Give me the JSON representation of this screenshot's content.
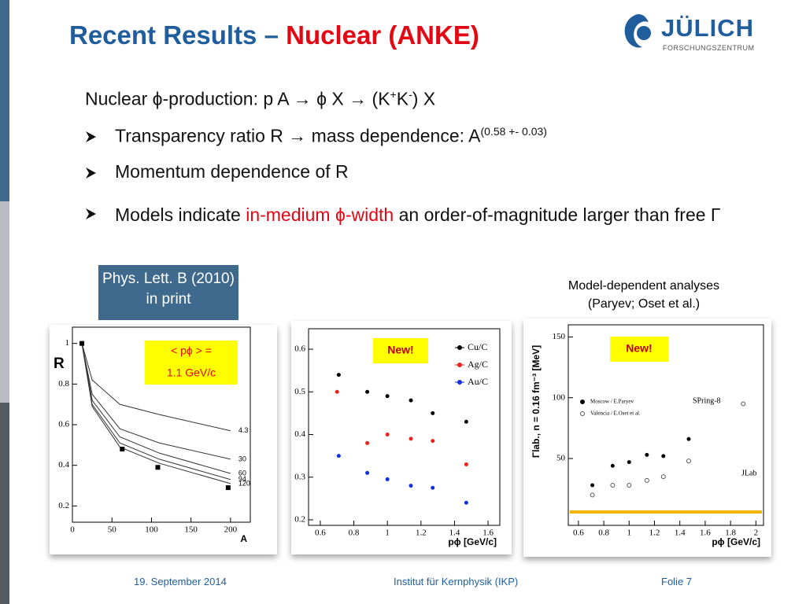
{
  "header": {
    "title_main": "Recent Results –",
    "title_highlight": "Nuclear (ANKE)",
    "logo_name": "JÜLICH",
    "logo_sub": "FORSCHUNGSZENTRUM"
  },
  "content": {
    "heading": {
      "text": "Nuclear ϕ-production: p A → ϕ X → (K",
      "sup1": "+",
      "mid": "K",
      "sup2": "-",
      "end": ") X"
    },
    "bullets": [
      {
        "text": "Transparency ratio R  → mass dependence: A",
        "sup": "(0.58 +- 0.03)"
      },
      {
        "text": "Momentum dependence of R"
      },
      {
        "text": "Models indicate ",
        "highlight": "in-medium ϕ-width",
        "end": " an order-of-magnitude larger than free Γ"
      }
    ],
    "reference": "Phys. Lett. B (2010) in print",
    "models_note": "Model-dependent analyses (Paryev; Oset et al.)"
  },
  "plots": [
    {
      "xlim": [
        0,
        225
      ],
      "ylim": [
        0.12,
        1.08
      ],
      "xticks": [
        0,
        50,
        100,
        150,
        200
      ],
      "yticks": [
        0.2,
        0.4,
        0.6,
        0.8,
        1
      ],
      "ylabel": "R",
      "xlabel": "A",
      "badge": [
        "< pϕ > =",
        "1.1 GeV/c"
      ],
      "series": [
        {
          "name": "4.3",
          "line": true,
          "color": "#333333",
          "x": [
            12,
            25,
            60,
            110,
            200
          ],
          "y": [
            1,
            0.82,
            0.7,
            0.65,
            0.57
          ]
        },
        {
          "name": "30",
          "line": true,
          "color": "#333333",
          "x": [
            12,
            25,
            60,
            110,
            200
          ],
          "y": [
            1,
            0.75,
            0.58,
            0.51,
            0.43
          ]
        },
        {
          "name": "60",
          "line": true,
          "color": "#333333",
          "x": [
            12,
            25,
            60,
            110,
            200
          ],
          "y": [
            1,
            0.72,
            0.54,
            0.46,
            0.36
          ]
        },
        {
          "name": "94",
          "line": true,
          "color": "#333333",
          "x": [
            12,
            25,
            60,
            110,
            200
          ],
          "y": [
            1,
            0.7,
            0.51,
            0.43,
            0.33
          ]
        },
        {
          "name": "120",
          "line": true,
          "color": "#333333",
          "x": [
            12,
            25,
            60,
            110,
            200
          ],
          "y": [
            1,
            0.69,
            0.49,
            0.41,
            0.31
          ]
        },
        {
          "marker": "square",
          "color": "#000000",
          "x": [
            12,
            63,
            108,
            197
          ],
          "y": [
            1,
            0.48,
            0.39,
            0.29
          ]
        }
      ]
    },
    {
      "xlim": [
        0.53,
        1.67
      ],
      "ylim": [
        0.187,
        0.648
      ],
      "xticks": [
        0.6,
        0.8,
        1,
        1.2,
        1.4,
        1.6
      ],
      "yticks": [
        0.2,
        0.3,
        0.4,
        0.5,
        0.6
      ],
      "xlabel": "pϕ [GeV/c]",
      "badge": [
        "New!"
      ],
      "series": [
        {
          "name": "Cu/C",
          "marker": "dot",
          "color": "#000000",
          "x": [
            0.71,
            0.88,
            1.0,
            1.14,
            1.27,
            1.47
          ],
          "y": [
            0.54,
            0.5,
            0.49,
            0.48,
            0.45,
            0.43
          ]
        },
        {
          "name": "Ag/C",
          "marker": "dot",
          "color": "#e8231f",
          "x": [
            0.7,
            0.88,
            1.0,
            1.14,
            1.27,
            1.47
          ],
          "y": [
            0.5,
            0.38,
            0.4,
            0.39,
            0.385,
            0.33
          ]
        },
        {
          "name": "Au/C",
          "marker": "dot",
          "color": "#1030e0",
          "x": [
            0.71,
            0.88,
            1.0,
            1.14,
            1.27,
            1.47
          ],
          "y": [
            0.35,
            0.31,
            0.295,
            0.28,
            0.275,
            0.24
          ]
        }
      ]
    },
    {
      "xlim": [
        0.52,
        2.06
      ],
      "ylim": [
        -5,
        160
      ],
      "xticks": [
        0.6,
        0.8,
        1,
        1.2,
        1.4,
        1.6,
        1.8,
        2
      ],
      "yticks": [
        50,
        100,
        150
      ],
      "ylabel": "Γlab., n = 0.16 fm⁻³ [MeV]",
      "xlabel": "pϕ [GeV/c]",
      "badge": [
        "New!"
      ],
      "notes": [
        "SPring-8",
        "JLab"
      ],
      "series": [
        {
          "name": "Moscow / E.Paryev",
          "marker": "dot",
          "color": "#000000",
          "x": [
            0.71,
            0.87,
            1.0,
            1.14,
            1.27,
            1.47
          ],
          "y": [
            28,
            44,
            47,
            53,
            52,
            66
          ]
        },
        {
          "name": "Valencia / E.Oset et al.",
          "marker": "open",
          "color": "#555555",
          "x": [
            0.71,
            0.87,
            1.0,
            1.14,
            1.27,
            1.47
          ],
          "y": [
            20,
            28,
            28,
            32,
            35,
            48
          ]
        },
        {
          "marker": "open",
          "color": "#555555",
          "x": [
            1.9
          ],
          "y": [
            95
          ]
        }
      ]
    }
  ],
  "footer": {
    "date": "19. September 2014",
    "institute": "Institut für Kernphysik (IKP)",
    "slide": "Folie 7"
  }
}
